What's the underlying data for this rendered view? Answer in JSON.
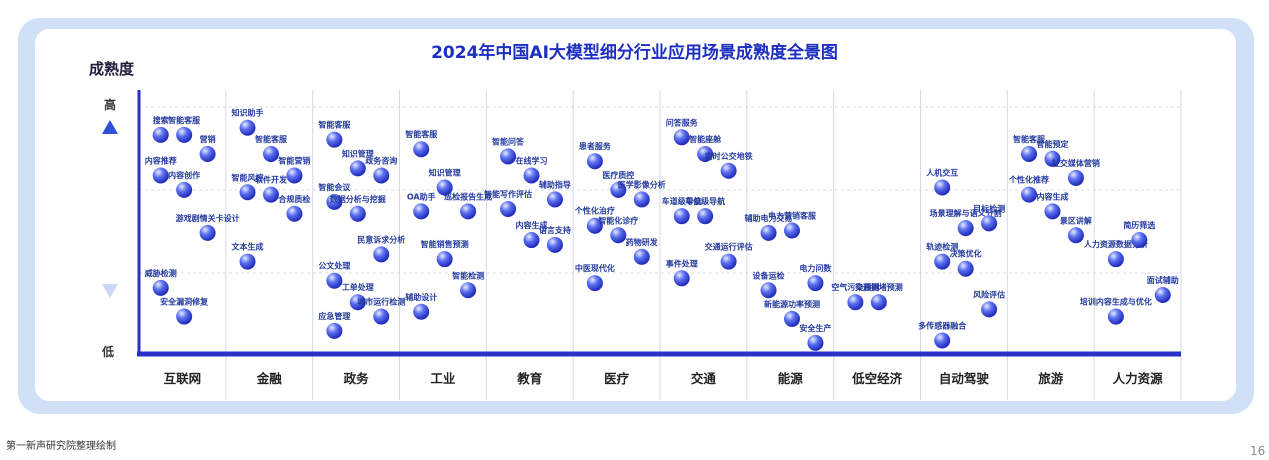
{
  "chart_data": {
    "type": "scatter",
    "title": "2024年中国AI大模型细分行业应用场景成熟度全景图",
    "ylabel": "成熟度",
    "y_high_label": "高",
    "y_low_label": "低",
    "ylim": [
      0,
      100
    ],
    "categories": [
      "互联网",
      "金融",
      "政务",
      "工业",
      "教育",
      "医疗",
      "交通",
      "能源",
      "低空经济",
      "自动驾驶",
      "旅游",
      "人力资源"
    ],
    "points": [
      {
        "category": "互联网",
        "label": "搜索",
        "maturity": 90
      },
      {
        "category": "互联网",
        "label": "智能客服",
        "maturity": 90
      },
      {
        "category": "互联网",
        "label": "营销",
        "maturity": 82
      },
      {
        "category": "互联网",
        "label": "内容推荐",
        "maturity": 73
      },
      {
        "category": "互联网",
        "label": "内容创作",
        "maturity": 67
      },
      {
        "category": "互联网",
        "label": "游戏剧情关卡设计",
        "maturity": 49
      },
      {
        "category": "互联网",
        "label": "威胁检测",
        "maturity": 26
      },
      {
        "category": "互联网",
        "label": "安全漏洞修复",
        "maturity": 14
      },
      {
        "category": "金融",
        "label": "知识助手",
        "maturity": 93
      },
      {
        "category": "金融",
        "label": "智能客服",
        "maturity": 82
      },
      {
        "category": "金融",
        "label": "智能营销",
        "maturity": 73
      },
      {
        "category": "金融",
        "label": "智能风控",
        "maturity": 66
      },
      {
        "category": "金融",
        "label": "软件开发",
        "maturity": 65
      },
      {
        "category": "金融",
        "label": "合规质检",
        "maturity": 57
      },
      {
        "category": "金融",
        "label": "文本生成",
        "maturity": 37
      },
      {
        "category": "政务",
        "label": "智能客服",
        "maturity": 88
      },
      {
        "category": "政务",
        "label": "知识管理",
        "maturity": 76
      },
      {
        "category": "政务",
        "label": "政务咨询",
        "maturity": 73
      },
      {
        "category": "政务",
        "label": "智能会议",
        "maturity": 62
      },
      {
        "category": "政务",
        "label": "数据分析与挖掘",
        "maturity": 57
      },
      {
        "category": "政务",
        "label": "民意诉求分析",
        "maturity": 40
      },
      {
        "category": "政务",
        "label": "公文处理",
        "maturity": 29
      },
      {
        "category": "政务",
        "label": "工单处理",
        "maturity": 20
      },
      {
        "category": "政务",
        "label": "城市运行检测",
        "maturity": 14
      },
      {
        "category": "政务",
        "label": "应急管理",
        "maturity": 8
      },
      {
        "category": "工业",
        "label": "智能客服",
        "maturity": 84
      },
      {
        "category": "工业",
        "label": "知识管理",
        "maturity": 68
      },
      {
        "category": "工业",
        "label": "巡检报告生成",
        "maturity": 58
      },
      {
        "category": "工业",
        "label": "OA助手",
        "maturity": 58
      },
      {
        "category": "工业",
        "label": "智能销售预测",
        "maturity": 38
      },
      {
        "category": "工业",
        "label": "智能检测",
        "maturity": 25
      },
      {
        "category": "工业",
        "label": "辅助设计",
        "maturity": 16
      },
      {
        "category": "教育",
        "label": "智能问答",
        "maturity": 81
      },
      {
        "category": "教育",
        "label": "在线学习",
        "maturity": 73
      },
      {
        "category": "教育",
        "label": "辅助指导",
        "maturity": 63
      },
      {
        "category": "教育",
        "label": "智能写作评估",
        "maturity": 59
      },
      {
        "category": "教育",
        "label": "内容生成",
        "maturity": 46
      },
      {
        "category": "教育",
        "label": "语言支持",
        "maturity": 44
      },
      {
        "category": "医疗",
        "label": "患者服务",
        "maturity": 79
      },
      {
        "category": "医疗",
        "label": "医疗质控",
        "maturity": 67
      },
      {
        "category": "医疗",
        "label": "医学影像分析",
        "maturity": 63
      },
      {
        "category": "医疗",
        "label": "个性化治疗",
        "maturity": 52
      },
      {
        "category": "医疗",
        "label": "智能化诊疗",
        "maturity": 48
      },
      {
        "category": "医疗",
        "label": "药物研发",
        "maturity": 39
      },
      {
        "category": "医疗",
        "label": "中医现代化",
        "maturity": 28
      },
      {
        "category": "交通",
        "label": "问答服务",
        "maturity": 89
      },
      {
        "category": "交通",
        "label": "智能座舱",
        "maturity": 82
      },
      {
        "category": "交通",
        "label": "实时公交地铁",
        "maturity": 75
      },
      {
        "category": "交通",
        "label": "车道级导航",
        "maturity": 56
      },
      {
        "category": "交通",
        "label": "车位级导航",
        "maturity": 56
      },
      {
        "category": "交通",
        "label": "交通运行评估",
        "maturity": 37
      },
      {
        "category": "交通",
        "label": "事件处理",
        "maturity": 30
      },
      {
        "category": "能源",
        "label": "辅助电力交易",
        "maturity": 49
      },
      {
        "category": "能源",
        "label": "电力营销客服",
        "maturity": 50
      },
      {
        "category": "能源",
        "label": "电力问数",
        "maturity": 28
      },
      {
        "category": "能源",
        "label": "设备运检",
        "maturity": 25
      },
      {
        "category": "能源",
        "label": "新能源功率预测",
        "maturity": 13
      },
      {
        "category": "能源",
        "label": "安全生产",
        "maturity": 3
      },
      {
        "category": "低空经济",
        "label": "空气污染预测",
        "maturity": 20
      },
      {
        "category": "低空经济",
        "label": "交通拥堵预测",
        "maturity": 20
      },
      {
        "category": "自动驾驶",
        "label": "人机交互",
        "maturity": 68
      },
      {
        "category": "自动驾驶",
        "label": "场景理解与语义分割",
        "maturity": 51
      },
      {
        "category": "自动驾驶",
        "label": "目标检测",
        "maturity": 53
      },
      {
        "category": "自动驾驶",
        "label": "轨迹检测",
        "maturity": 37
      },
      {
        "category": "自动驾驶",
        "label": "决策优化",
        "maturity": 34
      },
      {
        "category": "自动驾驶",
        "label": "风险评估",
        "maturity": 17
      },
      {
        "category": "自动驾驶",
        "label": "多传感器融合",
        "maturity": 4
      },
      {
        "category": "旅游",
        "label": "智能客服",
        "maturity": 82
      },
      {
        "category": "旅游",
        "label": "智能预定",
        "maturity": 80
      },
      {
        "category": "旅游",
        "label": "社交媒体营销",
        "maturity": 72
      },
      {
        "category": "旅游",
        "label": "个性化推荐",
        "maturity": 65
      },
      {
        "category": "旅游",
        "label": "内容生成",
        "maturity": 58
      },
      {
        "category": "旅游",
        "label": "景区讲解",
        "maturity": 48
      },
      {
        "category": "人力资源",
        "label": "人力资源数据分析",
        "maturity": 38
      },
      {
        "category": "人力资源",
        "label": "简历筛选",
        "maturity": 46
      },
      {
        "category": "人力资源",
        "label": "面试辅助",
        "maturity": 23
      },
      {
        "category": "人力资源",
        "label": "培训内容生成与优化",
        "maturity": 14
      }
    ]
  },
  "footer": {
    "source": "第一新声研究院整理绘制",
    "page_number": "16"
  },
  "colors": {
    "frame": "#cfe0f7",
    "axis": "#2a31c8",
    "title": "#1d2fc2",
    "bubble_dark": "#2432c4",
    "bubble_light": "#e6ecff",
    "arrow": "#3d5ee0"
  }
}
